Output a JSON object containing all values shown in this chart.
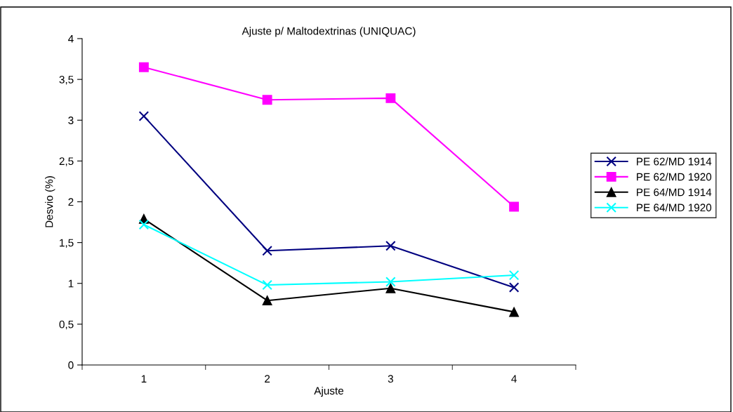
{
  "chart_data": {
    "type": "line",
    "title": "Ajuste p/ Maltodextrinas (UNIQUAC)",
    "xlabel": "Ajuste",
    "ylabel": "Desvio (%)",
    "categories": [
      "1",
      "2",
      "3",
      "4"
    ],
    "ylim": [
      0,
      4
    ],
    "yticks": [
      0,
      {
        "value": 0.5,
        "label": "0,5"
      },
      1,
      {
        "value": 1.5,
        "label": "1,5"
      },
      2,
      {
        "value": 2.5,
        "label": "2,5"
      },
      3,
      {
        "value": 3.5,
        "label": "3,5"
      },
      4
    ],
    "legend": "right",
    "grid": false,
    "series": [
      {
        "name": "PE 62/MD 1914",
        "color": "#000080",
        "marker": "cross",
        "values": [
          3.05,
          1.4,
          1.46,
          0.95
        ]
      },
      {
        "name": "PE 62/MD 1920",
        "color": "#ff00ff",
        "marker": "square",
        "values": [
          3.65,
          3.25,
          3.27,
          1.94
        ]
      },
      {
        "name": "PE 64/MD 1914",
        "color": "#000000",
        "marker": "triangle",
        "values": [
          1.79,
          0.79,
          0.94,
          0.65
        ]
      },
      {
        "name": "PE 64/MD 1920",
        "color": "#00ffff",
        "marker": "cross",
        "values": [
          1.72,
          0.98,
          1.02,
          1.1
        ]
      }
    ]
  }
}
